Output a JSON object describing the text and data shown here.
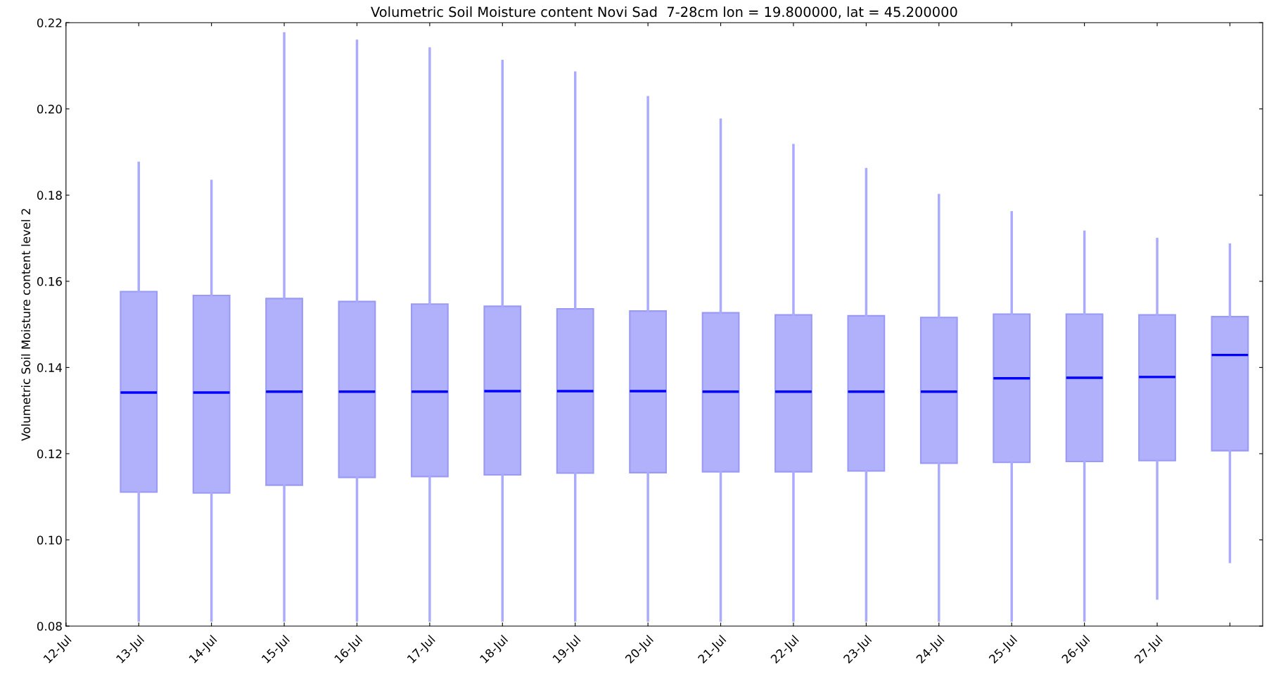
{
  "chart_data": {
    "type": "box",
    "title": "Volumetric Soil Moisture content Novi Sad  7-28cm lon = 19.800000, lat = 45.200000",
    "ylabel": "Volumetric Soil Moisture content level 2",
    "categories": [
      "12-Jul",
      "13-Jul",
      "14-Jul",
      "15-Jul",
      "16-Jul",
      "17-Jul",
      "18-Jul",
      "19-Jul",
      "20-Jul",
      "21-Jul",
      "22-Jul",
      "23-Jul",
      "24-Jul",
      "25-Jul",
      "26-Jul",
      "27-Jul",
      null
    ],
    "color": "#b0b0fb",
    "boxes": [
      null,
      {
        "low": 0.0813,
        "q1": 0.1111,
        "median": 0.1342,
        "q3": 0.1576,
        "high": 0.1875
      },
      {
        "low": 0.0813,
        "q1": 0.1109,
        "median": 0.1342,
        "q3": 0.1567,
        "high": 0.1833
      },
      {
        "low": 0.0813,
        "q1": 0.1127,
        "median": 0.1344,
        "q3": 0.156,
        "high": 0.2175
      },
      {
        "low": 0.0813,
        "q1": 0.1145,
        "median": 0.1344,
        "q3": 0.1553,
        "high": 0.2158
      },
      {
        "low": 0.0813,
        "q1": 0.1147,
        "median": 0.1344,
        "q3": 0.1547,
        "high": 0.214
      },
      {
        "low": 0.0813,
        "q1": 0.1151,
        "median": 0.1345,
        "q3": 0.1542,
        "high": 0.2111
      },
      {
        "low": 0.0813,
        "q1": 0.1155,
        "median": 0.1345,
        "q3": 0.1536,
        "high": 0.2084
      },
      {
        "low": 0.0813,
        "q1": 0.1156,
        "median": 0.1345,
        "q3": 0.1531,
        "high": 0.2027
      },
      {
        "low": 0.0813,
        "q1": 0.1158,
        "median": 0.1344,
        "q3": 0.1527,
        "high": 0.1975
      },
      {
        "low": 0.0813,
        "q1": 0.1158,
        "median": 0.1344,
        "q3": 0.1522,
        "high": 0.1916
      },
      {
        "low": 0.0813,
        "q1": 0.116,
        "median": 0.1344,
        "q3": 0.152,
        "high": 0.186
      },
      {
        "low": 0.0813,
        "q1": 0.1178,
        "median": 0.1344,
        "q3": 0.1516,
        "high": 0.18
      },
      {
        "low": 0.0813,
        "q1": 0.118,
        "median": 0.1375,
        "q3": 0.1524,
        "high": 0.176
      },
      {
        "low": 0.0813,
        "q1": 0.1182,
        "median": 0.1376,
        "q3": 0.1524,
        "high": 0.1715
      },
      {
        "low": 0.0864,
        "q1": 0.1184,
        "median": 0.1378,
        "q3": 0.1522,
        "high": 0.1698
      },
      {
        "low": 0.0949,
        "q1": 0.1207,
        "median": 0.1429,
        "q3": 0.1518,
        "high": 0.1685
      }
    ],
    "ylim": [
      0.08,
      0.22
    ],
    "yticks": [
      {
        "value": 0.08,
        "label": "0.08"
      },
      {
        "value": 0.1,
        "label": "0.10"
      },
      {
        "value": 0.12,
        "label": "0.12"
      },
      {
        "value": 0.14,
        "label": "0.14"
      },
      {
        "value": 0.16,
        "label": "0.16"
      },
      {
        "value": 0.18,
        "label": "0.18"
      },
      {
        "value": 0.2,
        "label": "0.20"
      },
      {
        "value": 0.22,
        "label": "0.22"
      }
    ],
    "grid": false,
    "legend": false
  }
}
